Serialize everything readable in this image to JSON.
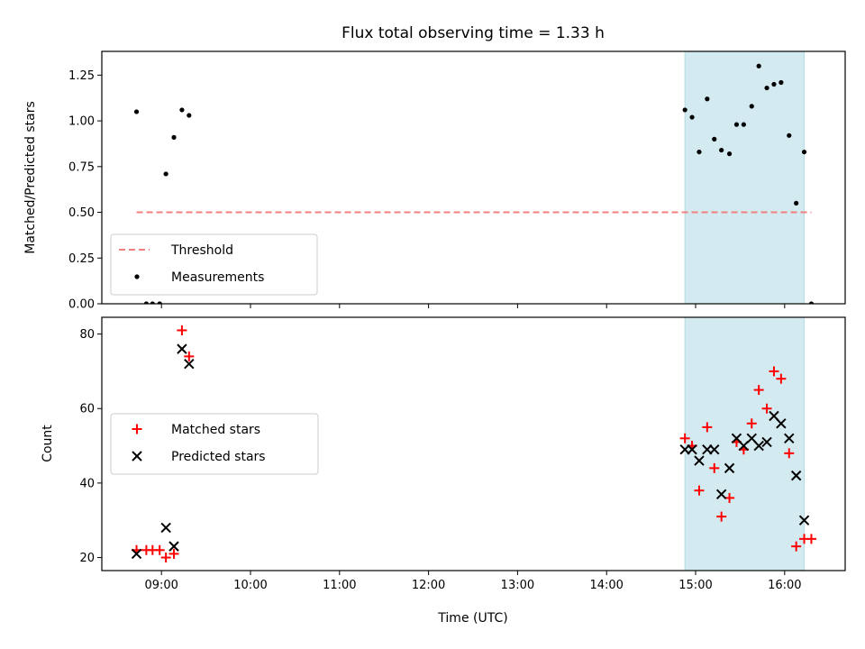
{
  "chart_data": {
    "title": "Flux total observing time = 1.33 h",
    "xlabel": "Time (UTC)",
    "x_ticks": [
      "09:00",
      "10:00",
      "11:00",
      "12:00",
      "13:00",
      "14:00",
      "15:00",
      "16:00"
    ],
    "x_range_hours": [
      8.33,
      16.68
    ],
    "shaded_interval_hours": [
      14.88,
      16.22
    ],
    "shade_color": "#d3eaf0",
    "panels": [
      {
        "type": "scatter",
        "ylabel": "Matched/Predicted stars",
        "ylim": [
          0,
          1.38
        ],
        "y_ticks": [
          "0.00",
          "0.25",
          "0.50",
          "0.75",
          "1.00",
          "1.25"
        ],
        "legend_position": "lower-left",
        "series": [
          {
            "name": "Threshold",
            "kind": "dashed-line",
            "color": "#f08080",
            "x": [
              8.72,
              16.3
            ],
            "y": [
              0.5,
              0.5
            ]
          },
          {
            "name": "Measurements",
            "kind": "dot",
            "color": "#000000",
            "points": [
              [
                8.72,
                1.05
              ],
              [
                8.83,
                0
              ],
              [
                8.9,
                0
              ],
              [
                8.98,
                0
              ],
              [
                9.05,
                0.71
              ],
              [
                9.14,
                0.91
              ],
              [
                9.23,
                1.06
              ],
              [
                9.31,
                1.03
              ],
              [
                14.88,
                1.06
              ],
              [
                14.96,
                1.02
              ],
              [
                15.04,
                0.83
              ],
              [
                15.13,
                1.12
              ],
              [
                15.21,
                0.9
              ],
              [
                15.29,
                0.84
              ],
              [
                15.38,
                0.82
              ],
              [
                15.46,
                0.98
              ],
              [
                15.54,
                0.98
              ],
              [
                15.63,
                1.08
              ],
              [
                15.71,
                1.3
              ],
              [
                15.8,
                1.18
              ],
              [
                15.88,
                1.2
              ],
              [
                15.96,
                1.21
              ],
              [
                16.05,
                0.92
              ],
              [
                16.13,
                0.55
              ],
              [
                16.22,
                0.83
              ],
              [
                16.3,
                0
              ]
            ]
          }
        ]
      },
      {
        "type": "scatter",
        "ylabel": "Count",
        "ylim": [
          16.5,
          84.5
        ],
        "y_ticks": [
          "20",
          "40",
          "60",
          "80"
        ],
        "legend_position": "center-left",
        "series": [
          {
            "name": "Matched stars",
            "kind": "plus",
            "color": "#ff0000",
            "points": [
              [
                8.72,
                22
              ],
              [
                8.83,
                22
              ],
              [
                8.9,
                22
              ],
              [
                8.98,
                22
              ],
              [
                9.05,
                20
              ],
              [
                9.14,
                21
              ],
              [
                9.23,
                81
              ],
              [
                9.31,
                74
              ],
              [
                14.88,
                52
              ],
              [
                14.96,
                50
              ],
              [
                15.04,
                38
              ],
              [
                15.13,
                55
              ],
              [
                15.21,
                44
              ],
              [
                15.29,
                31
              ],
              [
                15.38,
                36
              ],
              [
                15.46,
                51
              ],
              [
                15.54,
                49
              ],
              [
                15.63,
                56
              ],
              [
                15.71,
                65
              ],
              [
                15.8,
                60
              ],
              [
                15.88,
                70
              ],
              [
                15.96,
                68
              ],
              [
                16.05,
                48
              ],
              [
                16.13,
                23
              ],
              [
                16.22,
                25
              ],
              [
                16.3,
                25
              ]
            ]
          },
          {
            "name": "Predicted stars",
            "kind": "x",
            "color": "#000000",
            "points": [
              [
                8.72,
                21
              ],
              [
                9.05,
                28
              ],
              [
                9.14,
                23
              ],
              [
                9.23,
                76
              ],
              [
                9.31,
                72
              ],
              [
                14.88,
                49
              ],
              [
                14.96,
                49
              ],
              [
                15.04,
                46
              ],
              [
                15.13,
                49
              ],
              [
                15.21,
                49
              ],
              [
                15.29,
                37
              ],
              [
                15.38,
                44
              ],
              [
                15.46,
                52
              ],
              [
                15.54,
                50
              ],
              [
                15.63,
                52
              ],
              [
                15.71,
                50
              ],
              [
                15.8,
                51
              ],
              [
                15.88,
                58
              ],
              [
                15.96,
                56
              ],
              [
                16.05,
                52
              ],
              [
                16.13,
                42
              ],
              [
                16.22,
                30
              ]
            ]
          }
        ]
      }
    ]
  }
}
